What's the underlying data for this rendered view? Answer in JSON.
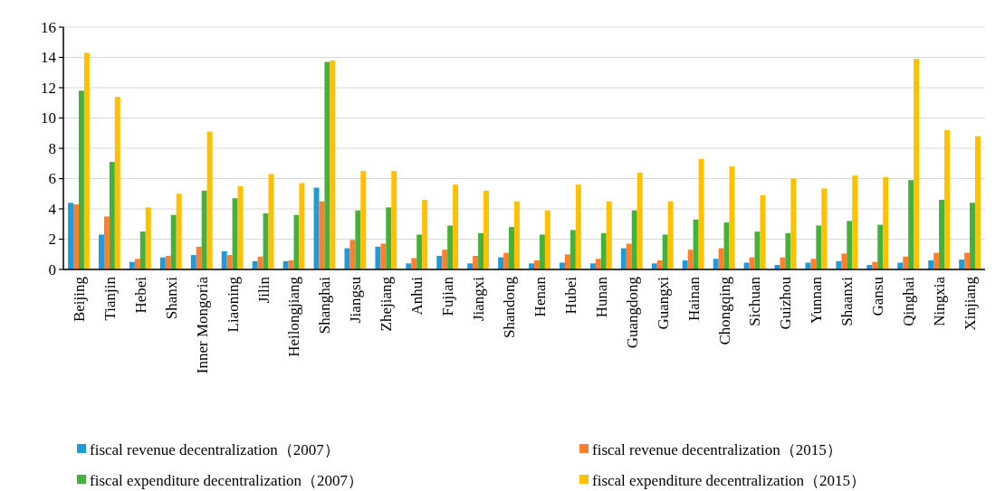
{
  "chart_data": {
    "type": "bar",
    "categories": [
      "Beijing",
      "Tianjin",
      "Hebei",
      "Shanxi",
      "Inner Mongoria",
      "Liaoning",
      "Jilin",
      "Heilongjiang",
      "Shanghai",
      "Jiangsu",
      "Zhejiang",
      "Anhui",
      "Fujian",
      "Jiangxi",
      "Shandong",
      "Henan",
      "Hubei",
      "Hunan",
      "Guangdong",
      "Guangxi",
      "Hainan",
      "Chongqing",
      "Sichuan",
      "Guizhou",
      "Yunnan",
      "Shaanxi",
      "Gansu",
      "Qinghai",
      "Ningxia",
      "Xinjiang"
    ],
    "series": [
      {
        "name": "fiscal revenue decentralization（2007）",
        "color": "#1f9bd7",
        "values": [
          4.4,
          2.3,
          0.5,
          0.8,
          0.95,
          1.2,
          0.55,
          0.55,
          5.4,
          1.4,
          1.5,
          0.4,
          0.9,
          0.4,
          0.8,
          0.4,
          0.45,
          0.4,
          1.4,
          0.4,
          0.6,
          0.7,
          0.45,
          0.3,
          0.45,
          0.55,
          0.3,
          0.45,
          0.6,
          0.65
        ]
      },
      {
        "name": "fiscal revenue decentralization（2015）",
        "color": "#fd7f2c",
        "values": [
          4.3,
          3.5,
          0.7,
          0.9,
          1.5,
          0.95,
          0.85,
          0.6,
          4.5,
          1.95,
          1.7,
          0.75,
          1.3,
          0.9,
          1.1,
          0.6,
          1.0,
          0.7,
          1.7,
          0.6,
          1.3,
          1.4,
          0.8,
          0.8,
          0.7,
          1.05,
          0.5,
          0.85,
          1.1,
          1.1
        ]
      },
      {
        "name": "fiscal expenditure decentralization（2007）",
        "color": "#45b03a",
        "values": [
          11.8,
          7.1,
          2.5,
          3.6,
          5.2,
          4.7,
          3.7,
          3.6,
          13.7,
          3.9,
          4.1,
          2.3,
          2.9,
          2.4,
          2.8,
          2.3,
          2.6,
          2.4,
          3.9,
          2.3,
          3.3,
          3.1,
          2.5,
          2.4,
          2.9,
          3.2,
          2.95,
          5.9,
          4.6,
          4.4
        ]
      },
      {
        "name": "fiscal expenditure decentralization（2015）",
        "color": "#ffc000",
        "values": [
          14.3,
          11.4,
          4.1,
          5.0,
          9.1,
          5.5,
          6.3,
          5.7,
          13.8,
          6.5,
          6.5,
          4.6,
          5.6,
          5.2,
          4.5,
          3.9,
          5.6,
          4.5,
          6.4,
          4.5,
          7.3,
          6.8,
          4.9,
          6.0,
          5.35,
          6.2,
          6.1,
          13.9,
          9.2,
          8.8
        ]
      }
    ],
    "ylim": [
      0,
      16
    ],
    "yticks": [
      0,
      2,
      4,
      6,
      8,
      10,
      12,
      14,
      16
    ],
    "grid": "y",
    "legend": "bottom"
  }
}
